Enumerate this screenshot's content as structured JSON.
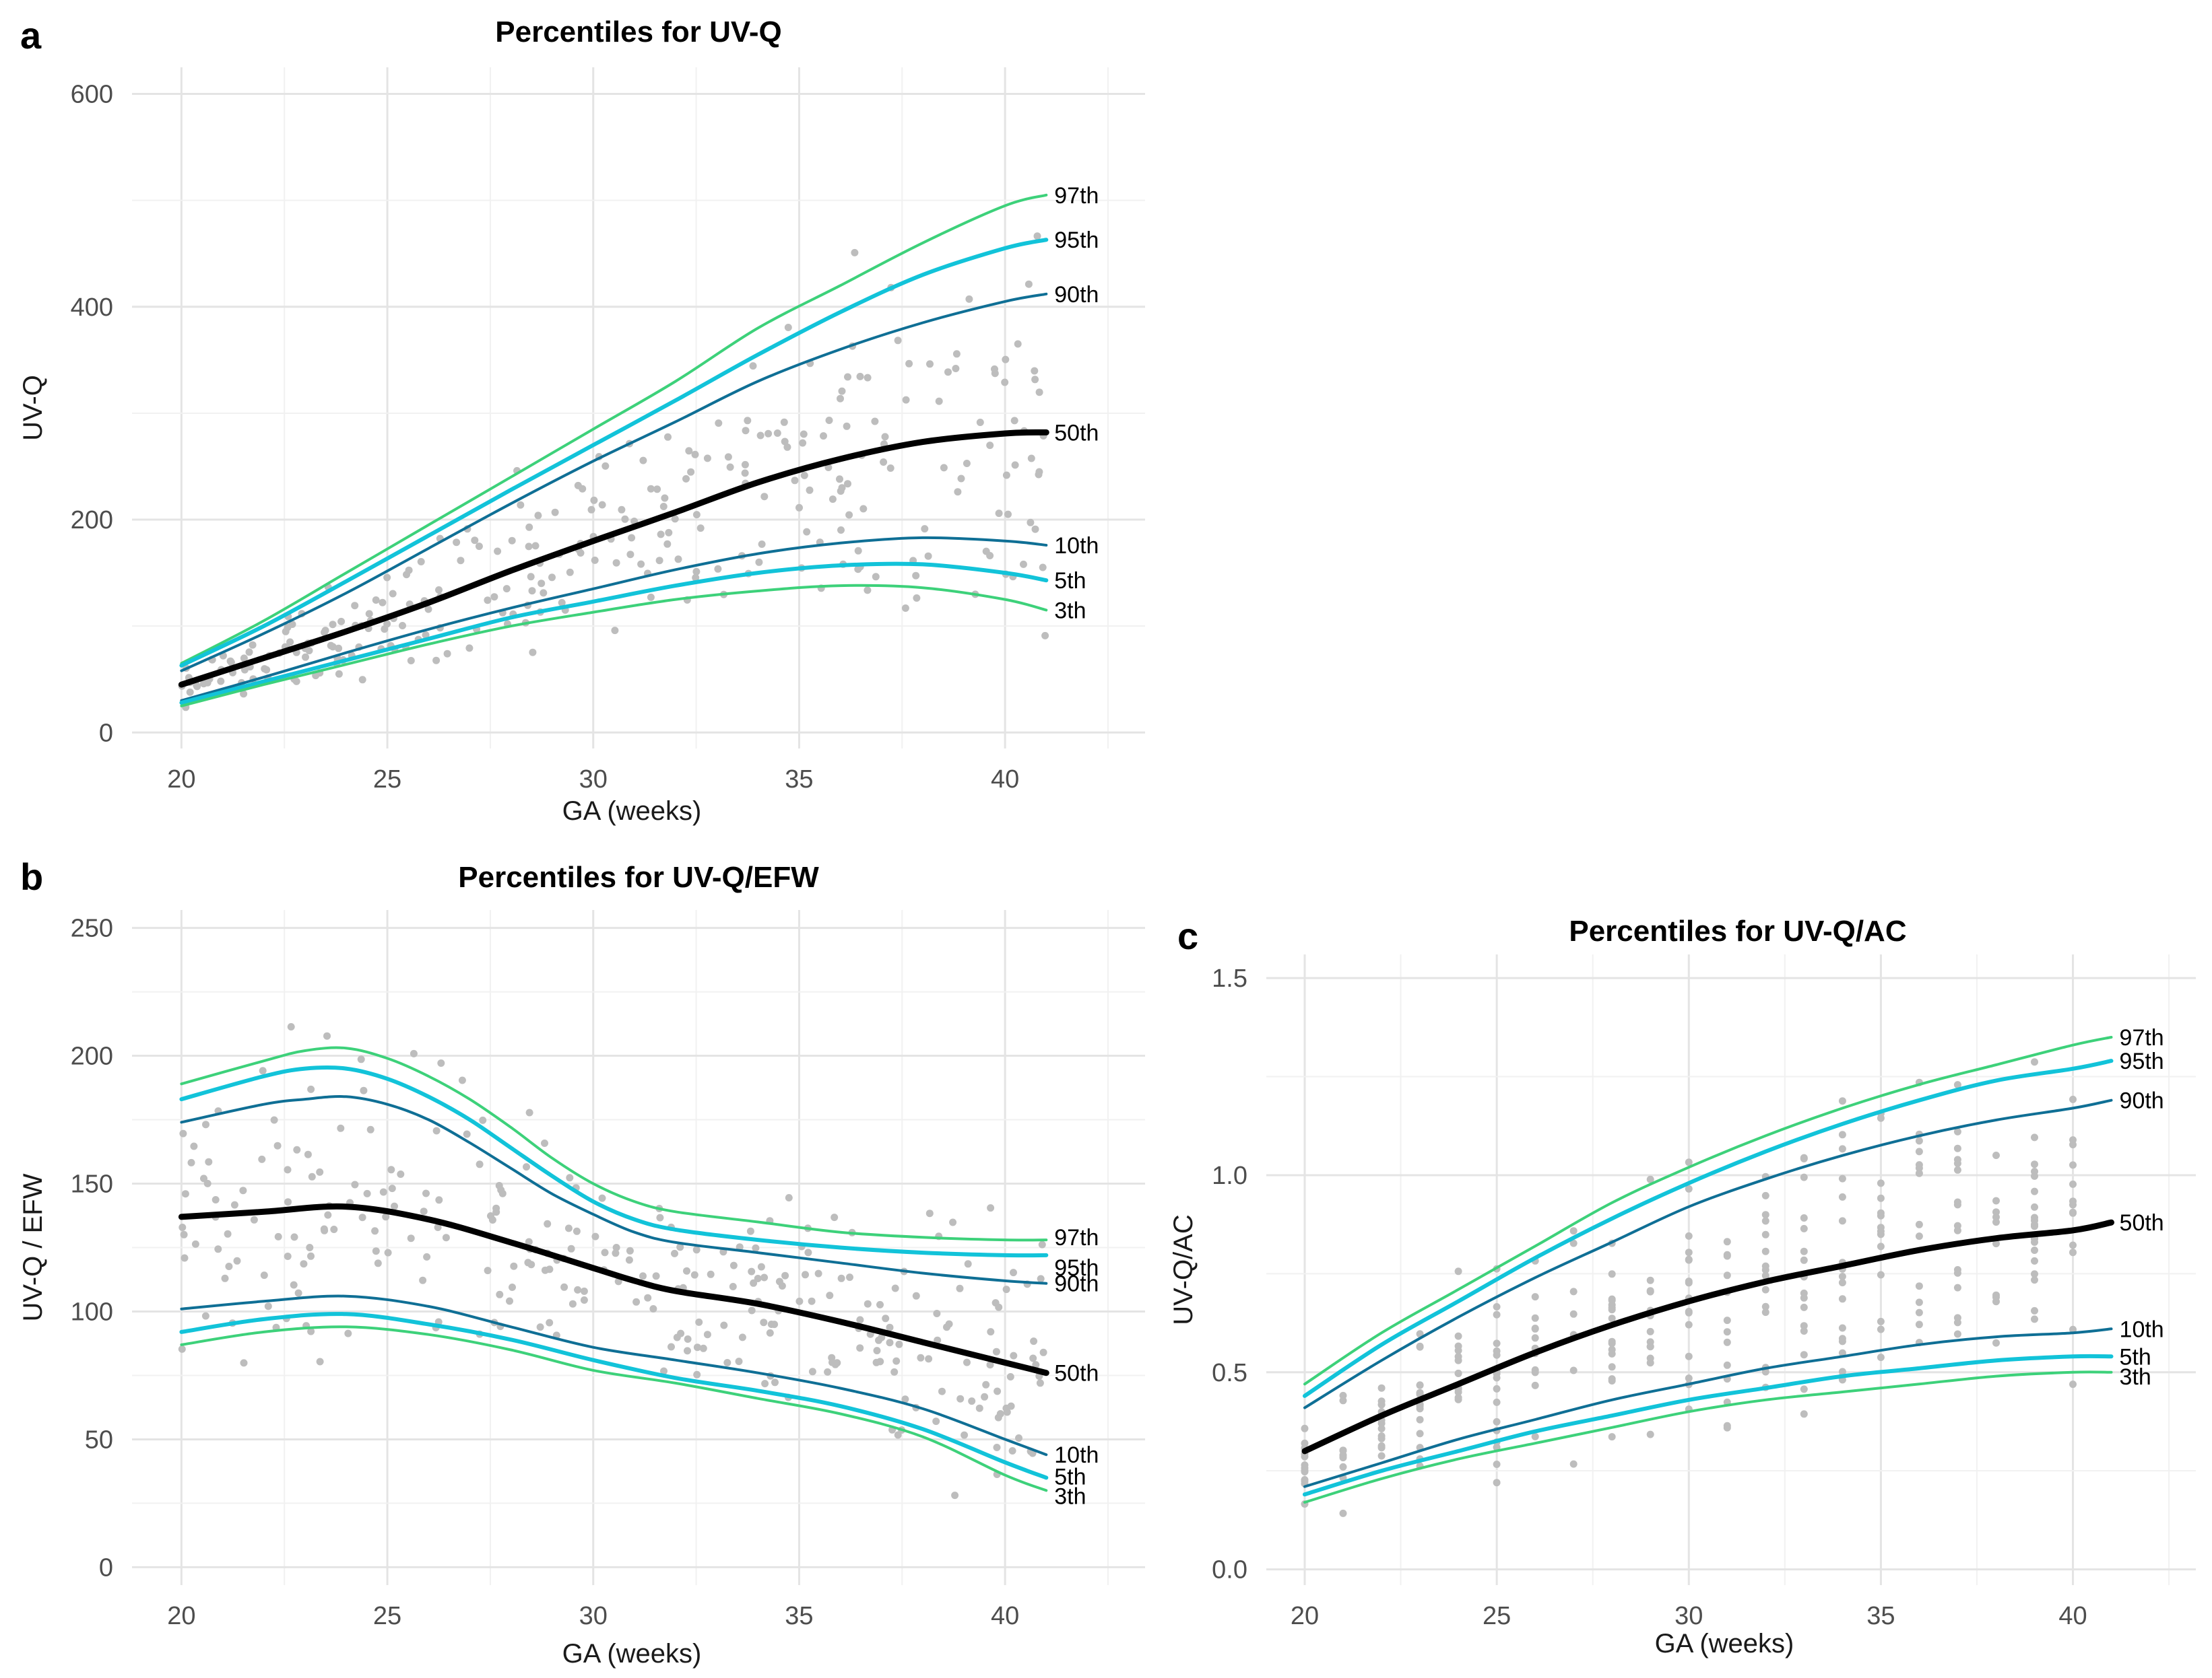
{
  "figure": {
    "background": "#ffffff",
    "point_color": "#bdbdbd"
  },
  "chart_data": [
    {
      "id": "a",
      "panel_label": "a",
      "type": "line",
      "title": "Percentiles for UV-Q",
      "xlabel": "GA (weeks)",
      "ylabel": "UV-Q",
      "xlim": [
        18.8,
        43.4
      ],
      "ylim": [
        -15,
        625
      ],
      "xticks": [
        20,
        25,
        30,
        35,
        40
      ],
      "yticks": [
        0,
        200,
        400,
        600
      ],
      "xtick_labels": [
        "20",
        "25",
        "30",
        "35",
        "40"
      ],
      "ytick_labels": [
        "0",
        "200",
        "400",
        "600"
      ],
      "grid": true,
      "series": [
        {
          "name": "97th",
          "label": "97th",
          "color": "#3dd17a",
          "width": 4,
          "x": [
            20,
            22,
            24,
            26,
            28,
            30,
            32,
            34,
            36,
            38,
            40,
            41
          ],
          "y": [
            65,
            105,
            150,
            195,
            240,
            285,
            330,
            380,
            420,
            460,
            495,
            505
          ]
        },
        {
          "name": "95th",
          "label": "95th",
          "color": "#12c3d9",
          "width": 6,
          "x": [
            20,
            22,
            24,
            26,
            28,
            30,
            32,
            34,
            36,
            38,
            40,
            41
          ],
          "y": [
            63,
            100,
            142,
            185,
            228,
            270,
            312,
            355,
            395,
            430,
            455,
            463
          ]
        },
        {
          "name": "90th",
          "label": "90th",
          "color": "#0f6f95",
          "width": 4,
          "x": [
            20,
            22,
            24,
            26,
            28,
            30,
            32,
            34,
            36,
            38,
            40,
            41
          ],
          "y": [
            58,
            93,
            131,
            173,
            215,
            255,
            292,
            330,
            360,
            385,
            405,
            412
          ]
        },
        {
          "name": "50th",
          "label": "50th",
          "color": "#000000",
          "width": 9,
          "x": [
            20,
            22,
            24,
            26,
            28,
            30,
            32,
            34,
            36,
            38,
            40,
            41
          ],
          "y": [
            45,
            70,
            95,
            122,
            152,
            180,
            207,
            235,
            257,
            273,
            281,
            282
          ]
        },
        {
          "name": "10th",
          "label": "10th",
          "color": "#0f6f95",
          "width": 4,
          "x": [
            20,
            22,
            24,
            26,
            28,
            30,
            32,
            34,
            36,
            38,
            40,
            41
          ],
          "y": [
            30,
            52,
            75,
            97,
            117,
            135,
            153,
            168,
            178,
            183,
            180,
            176
          ]
        },
        {
          "name": "5th",
          "label": "5th",
          "color": "#12c3d9",
          "width": 6,
          "x": [
            20,
            22,
            24,
            26,
            28,
            30,
            32,
            34,
            36,
            38,
            40,
            41
          ],
          "y": [
            28,
            48,
            68,
            88,
            108,
            123,
            138,
            150,
            157,
            158,
            150,
            143
          ]
        },
        {
          "name": "3th",
          "label": "3th",
          "color": "#3dd17a",
          "width": 4,
          "x": [
            20,
            22,
            24,
            26,
            28,
            30,
            32,
            34,
            36,
            38,
            40,
            41
          ],
          "y": [
            25,
            45,
            64,
            83,
            100,
            113,
            125,
            133,
            138,
            136,
            125,
            115
          ]
        }
      ]
    },
    {
      "id": "b",
      "panel_label": "b",
      "type": "line",
      "title": "Percentiles for UV-Q/EFW",
      "xlabel": "GA (weeks)",
      "ylabel": "UV-Q / EFW",
      "xlim": [
        18.8,
        43.4
      ],
      "ylim": [
        -7,
        257
      ],
      "xticks": [
        20,
        25,
        30,
        35,
        40
      ],
      "yticks": [
        0,
        50,
        100,
        150,
        200,
        250
      ],
      "xtick_labels": [
        "20",
        "25",
        "30",
        "35",
        "40"
      ],
      "ytick_labels": [
        "0",
        "50",
        "100",
        "150",
        "200",
        "250"
      ],
      "grid": true,
      "series": [
        {
          "name": "97th",
          "label": "97th",
          "color": "#3dd17a",
          "width": 4,
          "x": [
            20,
            22,
            23,
            24,
            25,
            26,
            27,
            28,
            29,
            30,
            31,
            32,
            34,
            36,
            38,
            40,
            41
          ],
          "y": [
            189,
            198,
            202,
            203,
            199,
            192,
            183,
            172,
            160,
            150,
            143,
            139,
            135,
            131,
            129,
            128,
            128
          ]
        },
        {
          "name": "95th",
          "label": "95th",
          "color": "#12c3d9",
          "width": 6,
          "x": [
            20,
            22,
            23,
            24,
            25,
            26,
            27,
            28,
            29,
            30,
            31,
            32,
            34,
            36,
            38,
            40,
            41
          ],
          "y": [
            183,
            192,
            195,
            195,
            191,
            184,
            175,
            164,
            153,
            143,
            136,
            132,
            128,
            125,
            123,
            122,
            122
          ]
        },
        {
          "name": "90th",
          "label": "90th",
          "color": "#0f6f95",
          "width": 4,
          "x": [
            20,
            22,
            23,
            24,
            25,
            26,
            27,
            28,
            29,
            30,
            31,
            32,
            34,
            36,
            38,
            40,
            41
          ],
          "y": [
            174,
            181,
            183,
            184,
            181,
            175,
            166,
            156,
            146,
            138,
            131,
            127,
            123,
            119,
            115,
            112,
            111
          ]
        },
        {
          "name": "50th",
          "label": "50th",
          "color": "#000000",
          "width": 9,
          "x": [
            20,
            22,
            24,
            26,
            28,
            30,
            31,
            32,
            34,
            36,
            38,
            40,
            41
          ],
          "y": [
            137,
            139,
            141,
            136,
            127,
            117,
            112,
            108,
            103,
            96,
            88,
            80,
            76
          ]
        },
        {
          "name": "10th",
          "label": "10th",
          "color": "#0f6f95",
          "width": 4,
          "x": [
            20,
            22,
            24,
            26,
            28,
            30,
            32,
            34,
            36,
            38,
            40,
            41
          ],
          "y": [
            101,
            104,
            106,
            102,
            94,
            86,
            81,
            76,
            70,
            62,
            50,
            44
          ]
        },
        {
          "name": "5th",
          "label": "5th",
          "color": "#12c3d9",
          "width": 6,
          "x": [
            20,
            22,
            24,
            26,
            28,
            30,
            32,
            34,
            36,
            38,
            40,
            41
          ],
          "y": [
            92,
            97,
            99,
            95,
            89,
            81,
            74,
            69,
            63,
            54,
            41,
            35
          ]
        },
        {
          "name": "3th",
          "label": "3th",
          "color": "#3dd17a",
          "width": 4,
          "x": [
            20,
            22,
            24,
            26,
            28,
            30,
            32,
            34,
            36,
            38,
            40,
            41
          ],
          "y": [
            87,
            92,
            94,
            91,
            85,
            77,
            72,
            66,
            60,
            51,
            36,
            30
          ]
        }
      ]
    },
    {
      "id": "c",
      "panel_label": "c",
      "type": "line",
      "title": "Percentiles for UV-Q/AC",
      "xlabel": "GA (weeks)",
      "ylabel": "UV-Q/AC",
      "xlim": [
        19.0,
        43.2
      ],
      "ylim": [
        -0.04,
        1.56
      ],
      "xticks": [
        20,
        25,
        30,
        35,
        40
      ],
      "yticks": [
        0.0,
        0.5,
        1.0,
        1.5
      ],
      "xtick_labels": [
        "20",
        "25",
        "30",
        "35",
        "40"
      ],
      "ytick_labels": [
        "0.0",
        "0.5",
        "1.0",
        "1.5"
      ],
      "grid": true,
      "series": [
        {
          "name": "97th",
          "label": "97th",
          "color": "#3dd17a",
          "width": 4,
          "x": [
            20,
            22,
            24,
            26,
            28,
            30,
            32,
            34,
            36,
            38,
            40,
            41
          ],
          "y": [
            0.47,
            0.6,
            0.71,
            0.82,
            0.93,
            1.02,
            1.1,
            1.17,
            1.23,
            1.28,
            1.33,
            1.35
          ]
        },
        {
          "name": "95th",
          "label": "95th",
          "color": "#12c3d9",
          "width": 6,
          "x": [
            20,
            22,
            24,
            26,
            28,
            30,
            32,
            34,
            36,
            38,
            40,
            41
          ],
          "y": [
            0.44,
            0.57,
            0.68,
            0.79,
            0.89,
            0.98,
            1.06,
            1.13,
            1.19,
            1.24,
            1.27,
            1.29
          ]
        },
        {
          "name": "90th",
          "label": "90th",
          "color": "#0f6f95",
          "width": 4,
          "x": [
            20,
            22,
            24,
            26,
            28,
            30,
            32,
            34,
            36,
            38,
            40,
            41
          ],
          "y": [
            0.41,
            0.53,
            0.64,
            0.74,
            0.83,
            0.92,
            0.99,
            1.05,
            1.1,
            1.14,
            1.17,
            1.19
          ]
        },
        {
          "name": "50th",
          "label": "50th",
          "color": "#000000",
          "width": 9,
          "x": [
            20,
            22,
            24,
            26,
            28,
            30,
            32,
            34,
            36,
            38,
            40,
            41
          ],
          "y": [
            0.3,
            0.39,
            0.47,
            0.55,
            0.62,
            0.68,
            0.73,
            0.77,
            0.81,
            0.84,
            0.86,
            0.88
          ]
        },
        {
          "name": "10th",
          "label": "10th",
          "color": "#0f6f95",
          "width": 4,
          "x": [
            20,
            22,
            24,
            26,
            28,
            30,
            32,
            34,
            36,
            38,
            40,
            41
          ],
          "y": [
            0.21,
            0.27,
            0.33,
            0.38,
            0.43,
            0.47,
            0.51,
            0.54,
            0.57,
            0.59,
            0.6,
            0.61
          ]
        },
        {
          "name": "5th",
          "label": "5th",
          "color": "#12c3d9",
          "width": 6,
          "x": [
            20,
            22,
            24,
            26,
            28,
            30,
            32,
            34,
            36,
            38,
            40,
            41
          ],
          "y": [
            0.19,
            0.25,
            0.3,
            0.35,
            0.39,
            0.43,
            0.46,
            0.49,
            0.51,
            0.53,
            0.54,
            0.54
          ]
        },
        {
          "name": "3th",
          "label": "3th",
          "color": "#3dd17a",
          "width": 4,
          "x": [
            20,
            22,
            24,
            26,
            28,
            30,
            32,
            34,
            36,
            38,
            40,
            41
          ],
          "y": [
            0.17,
            0.23,
            0.28,
            0.32,
            0.36,
            0.4,
            0.43,
            0.45,
            0.47,
            0.49,
            0.5,
            0.5
          ]
        }
      ]
    }
  ]
}
